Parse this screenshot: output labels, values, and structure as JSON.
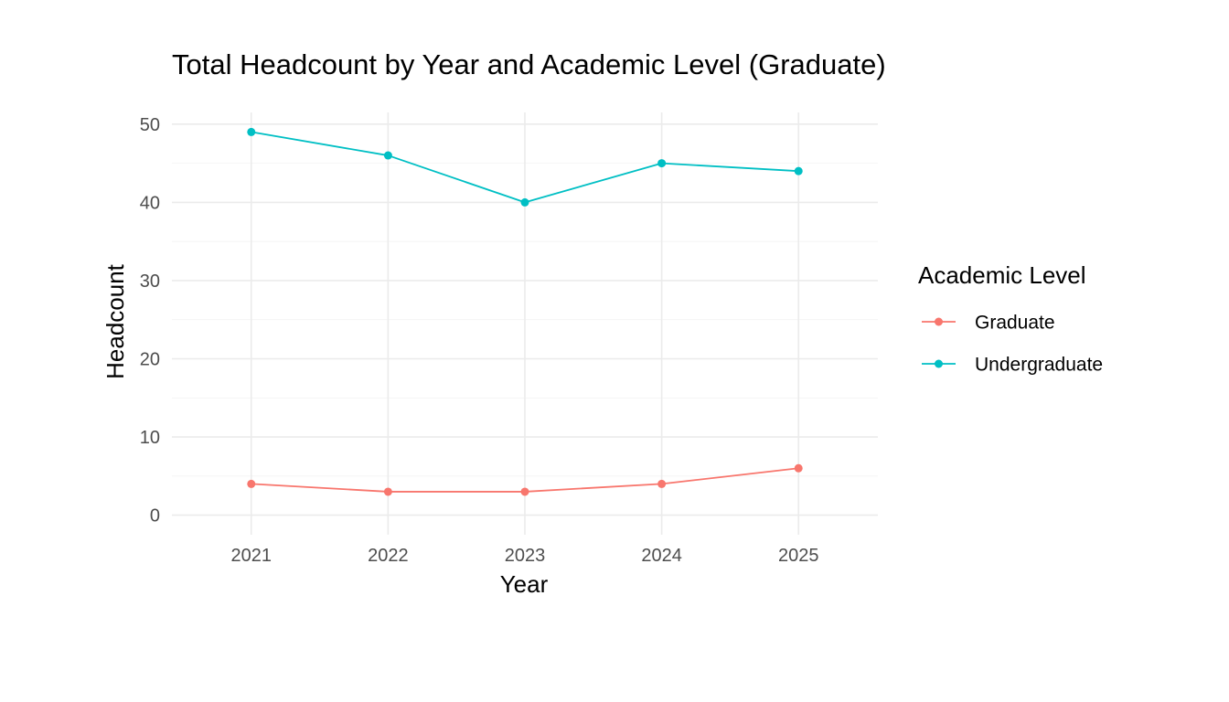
{
  "chart_data": {
    "type": "line",
    "title": "Total Headcount by Year and Academic Level (Graduate)",
    "xlabel": "Year",
    "ylabel": "Headcount",
    "x": [
      2021,
      2022,
      2023,
      2024,
      2025
    ],
    "x_tick_labels": [
      "2021",
      "2022",
      "2023",
      "2024",
      "2025"
    ],
    "y_ticks": [
      0,
      10,
      20,
      30,
      40,
      50
    ],
    "y_tick_labels": [
      "0",
      "10",
      "20",
      "30",
      "40",
      "50"
    ],
    "xlim": [
      2020.42,
      2025.58
    ],
    "ylim": [
      -2.5,
      51.5
    ],
    "grid": true,
    "legend": {
      "title": "Academic Level",
      "placement": "right"
    },
    "series": [
      {
        "name": "Graduate",
        "color": "#F8766D",
        "values": [
          4,
          3,
          3,
          4,
          6
        ]
      },
      {
        "name": "Undergraduate",
        "color": "#00BFC4",
        "values": [
          49,
          46,
          40,
          45,
          44
        ]
      }
    ]
  }
}
